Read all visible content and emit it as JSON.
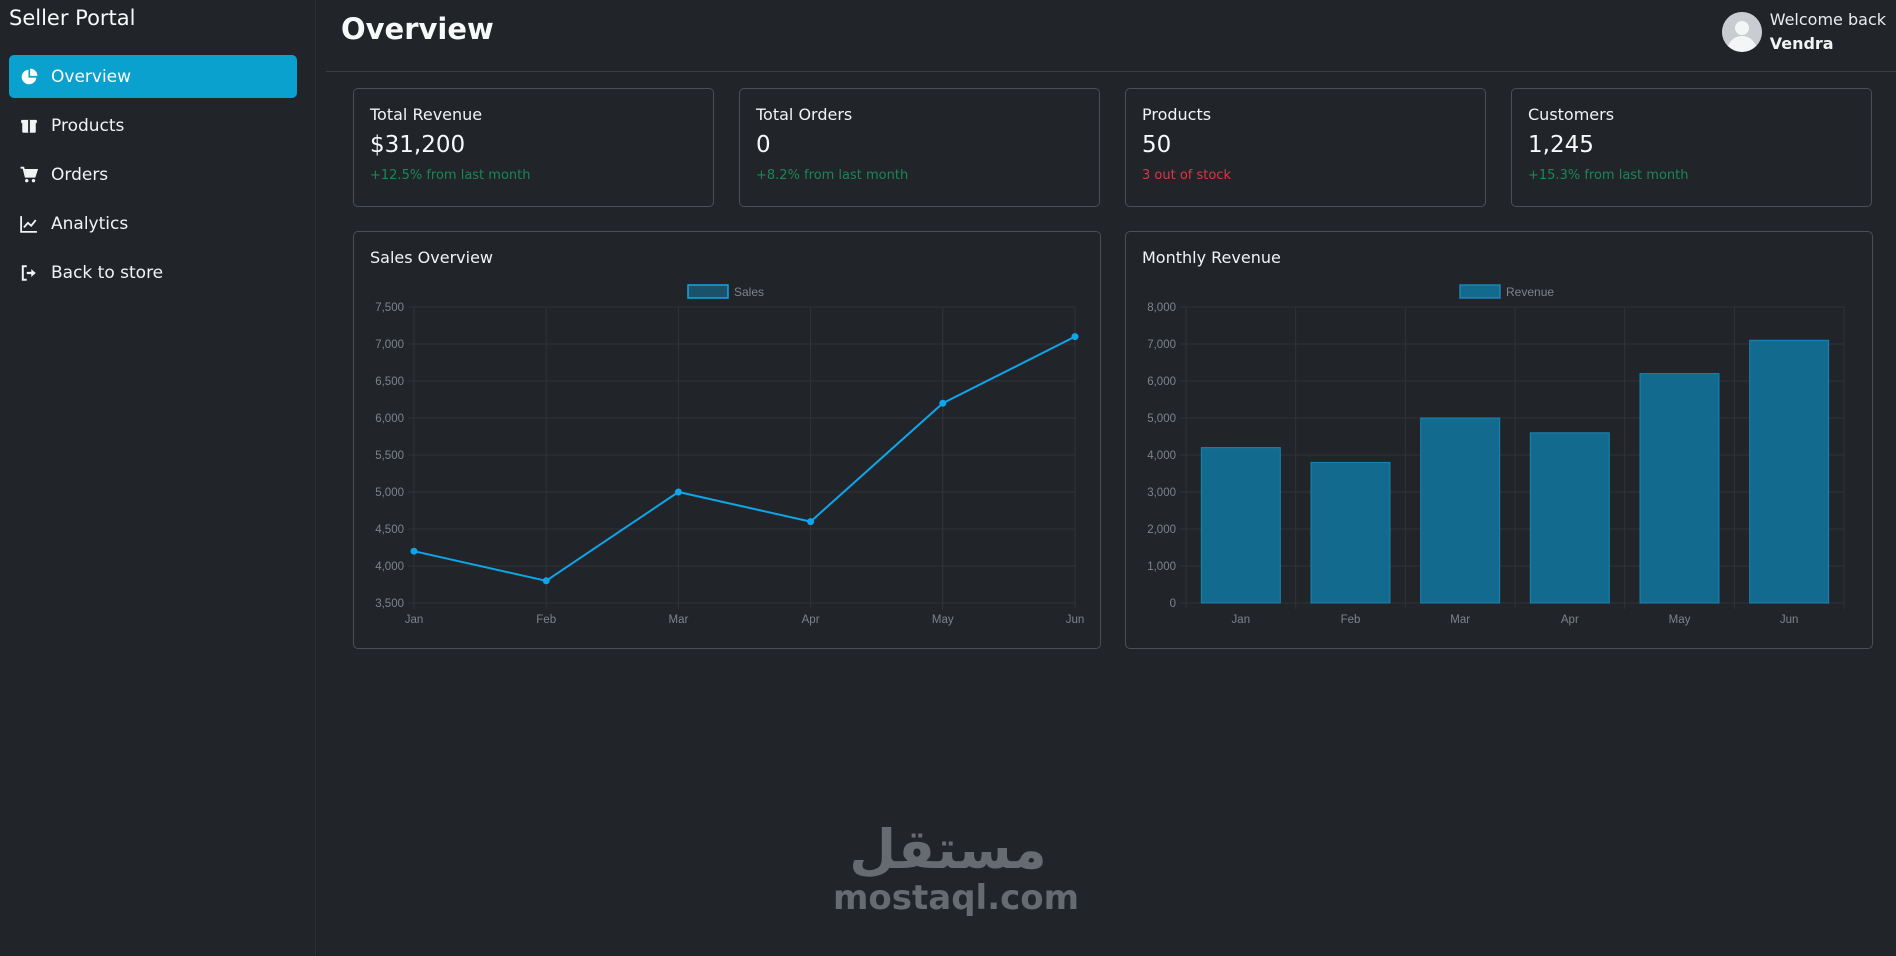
{
  "sidebar": {
    "brand": "Seller Portal",
    "items": [
      {
        "label": "Overview",
        "icon": "pie-chart-icon",
        "active": true
      },
      {
        "label": "Products",
        "icon": "box-icon"
      },
      {
        "label": "Orders",
        "icon": "cart-icon"
      },
      {
        "label": "Analytics",
        "icon": "line-chart-icon"
      },
      {
        "label": "Back to store",
        "icon": "sign-out-icon"
      }
    ]
  },
  "header": {
    "title": "Overview",
    "welcome": "Welcome back",
    "username": "Vendra"
  },
  "stats": [
    {
      "title": "Total Revenue",
      "value": "$31,200",
      "change": "+12.5% from last month",
      "status": "positive"
    },
    {
      "title": "Total Orders",
      "value": "0",
      "change": "+8.2% from last month",
      "status": "positive"
    },
    {
      "title": "Products",
      "value": "50",
      "change": "3 out of stock",
      "status": "negative"
    },
    {
      "title": "Customers",
      "value": "1,245",
      "change": "+15.3% from last month",
      "status": "positive"
    }
  ],
  "charts": {
    "sales_title": "Sales Overview",
    "revenue_title": "Monthly Revenue"
  },
  "chart_data": [
    {
      "type": "line",
      "title": "Sales Overview",
      "categories": [
        "Jan",
        "Feb",
        "Mar",
        "Apr",
        "May",
        "Jun"
      ],
      "series": [
        {
          "name": "Sales",
          "values": [
            4200,
            3800,
            5000,
            4600,
            6200,
            7100
          ]
        }
      ],
      "ylim": [
        3500,
        7500
      ],
      "yticks": [
        "3,500",
        "4,000",
        "4,500",
        "5,000",
        "5,500",
        "6,000",
        "6,500",
        "7,000",
        "7,500"
      ],
      "legend": "top-center",
      "grid": true,
      "color": "#0ea5e9"
    },
    {
      "type": "bar",
      "title": "Monthly Revenue",
      "categories": [
        "Jan",
        "Feb",
        "Mar",
        "Apr",
        "May",
        "Jun"
      ],
      "series": [
        {
          "name": "Revenue",
          "values": [
            4200,
            3800,
            5000,
            4600,
            6200,
            7100
          ]
        }
      ],
      "ylim": [
        0,
        8000
      ],
      "yticks": [
        "0",
        "1,000",
        "2,000",
        "3,000",
        "4,000",
        "5,000",
        "6,000",
        "7,000",
        "8,000"
      ],
      "legend": "top-center",
      "grid": true,
      "color": "#136a8f"
    }
  ],
  "watermark": {
    "arabic": "مستقل",
    "latin": "mostaql.com"
  },
  "colors": {
    "background": "#212529",
    "accent": "#0aa1cf",
    "positive": "#198754",
    "negative": "#dc3545"
  }
}
